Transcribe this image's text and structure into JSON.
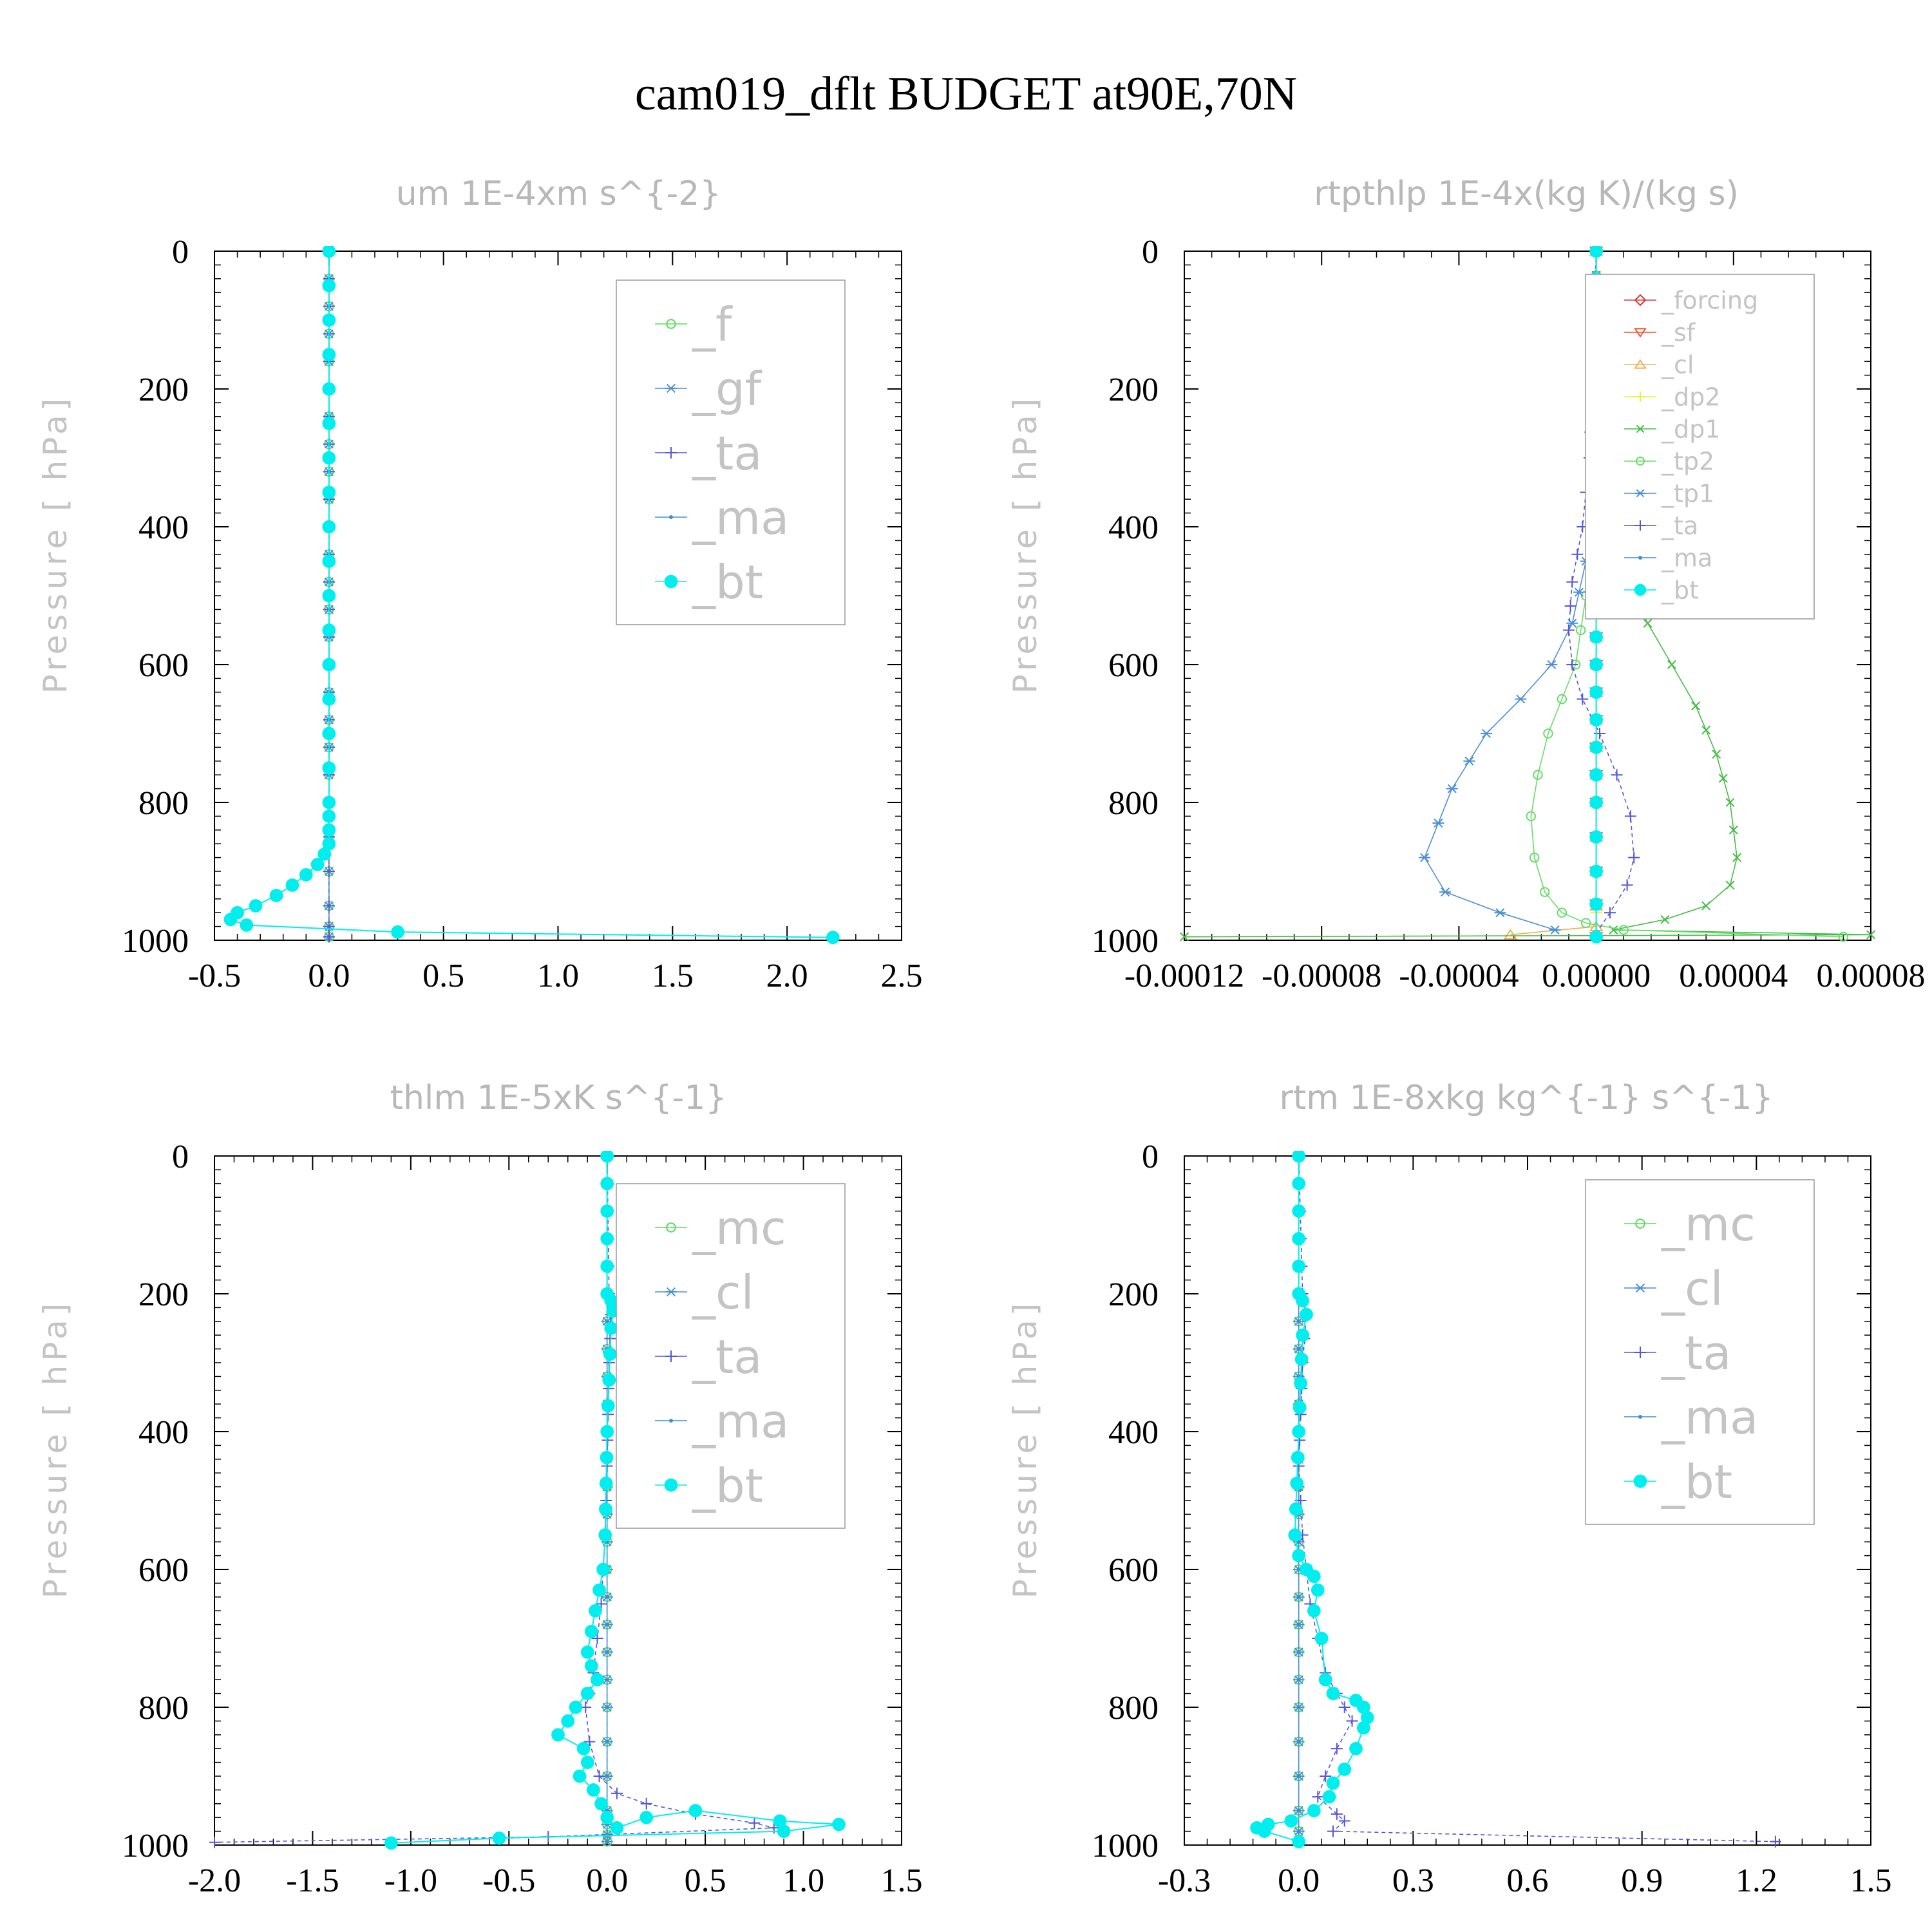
{
  "title": "cam019_dflt  BUDGET at90E,70N",
  "chart_data": [
    {
      "type": "line",
      "title": "um   1E-4xm s^{-2}",
      "ylabel": "Pressure [ hPa]",
      "xlim": [
        -0.5,
        2.5
      ],
      "ylim": [
        1000,
        0
      ],
      "xticks": [
        "-0.5",
        "0.0",
        "0.5",
        "1.0",
        "1.5",
        "2.0",
        "2.5"
      ],
      "yticks": [
        "0",
        "200",
        "400",
        "600",
        "800",
        "1000"
      ],
      "legend_position": "top-right",
      "series": [
        {
          "name": "_f",
          "color": "#55dd55",
          "marker": "circle-open",
          "x": [
            0,
            0,
            0,
            0,
            0,
            0,
            0,
            0,
            0
          ],
          "y": [
            0,
            200,
            400,
            600,
            800,
            900,
            950,
            980,
            995
          ]
        },
        {
          "name": "_gf",
          "color": "#4a8fd8",
          "marker": "star",
          "x": [
            0,
            0,
            0,
            0,
            0,
            0,
            0,
            0,
            0
          ],
          "y": [
            0,
            200,
            400,
            600,
            800,
            900,
            950,
            980,
            995
          ]
        },
        {
          "name": "_ta",
          "color": "#5555dd",
          "marker": "plus",
          "x": [
            0,
            0,
            0,
            0,
            0,
            0,
            0,
            0,
            0
          ],
          "y": [
            0,
            200,
            400,
            600,
            800,
            900,
            950,
            980,
            995
          ]
        },
        {
          "name": "_ma",
          "color": "#3f8fcf",
          "marker": "dot",
          "x": [
            0,
            0,
            0,
            0,
            0,
            0,
            0,
            0,
            0,
            0,
            0,
            0,
            -0.02,
            -0.05,
            -0.1,
            -0.16,
            -0.23,
            -0.32,
            -0.4,
            -0.43,
            -0.36,
            0.3,
            2.2
          ],
          "y": [
            0,
            100,
            200,
            300,
            400,
            500,
            600,
            700,
            800,
            820,
            840,
            860,
            875,
            890,
            905,
            920,
            935,
            950,
            960,
            970,
            978,
            988,
            996
          ]
        },
        {
          "name": "_bt",
          "color": "#00eeee",
          "marker": "filled",
          "x": [
            0,
            0,
            0,
            0,
            0,
            0,
            0,
            0,
            0,
            0,
            0,
            0,
            -0.02,
            -0.05,
            -0.1,
            -0.16,
            -0.23,
            -0.32,
            -0.4,
            -0.43,
            -0.36,
            0.3,
            2.2
          ],
          "y": [
            0,
            100,
            200,
            300,
            400,
            500,
            600,
            700,
            800,
            820,
            840,
            860,
            875,
            890,
            905,
            920,
            935,
            950,
            960,
            970,
            978,
            988,
            996
          ]
        }
      ]
    },
    {
      "type": "line",
      "title": "rtpthlp   1E-4x(kg K)/(kg s)",
      "ylabel": "Pressure [ hPa]",
      "xlim": [
        -0.00012,
        8e-05
      ],
      "ylim": [
        1000,
        0
      ],
      "xticks": [
        "-0.00012",
        "-0.00008",
        "-0.00004",
        "0.00000",
        "0.00004",
        "0.00008"
      ],
      "yticks": [
        "0",
        "200",
        "400",
        "600",
        "800",
        "1000"
      ],
      "legend_position": "top-right",
      "series": [
        {
          "name": "_forcing",
          "color": "#dd3333",
          "marker": "diamond",
          "x": [
            0,
            0,
            0,
            0,
            0,
            0,
            0
          ],
          "y": [
            0,
            200,
            400,
            600,
            800,
            900,
            995
          ]
        },
        {
          "name": "_sf",
          "color": "#ee5533",
          "marker": "tri-down",
          "x": [
            0,
            0,
            0,
            0,
            0,
            0,
            0
          ],
          "y": [
            0,
            200,
            400,
            600,
            800,
            900,
            995
          ]
        },
        {
          "name": "_cl",
          "color": "#f0b050",
          "marker": "tri-up",
          "x": [
            0,
            0,
            0,
            0,
            0,
            0,
            0,
            0,
            -2.5e-05
          ],
          "y": [
            0,
            200,
            400,
            600,
            800,
            900,
            950,
            980,
            992
          ]
        },
        {
          "name": "_dp2",
          "color": "#eeee33",
          "marker": "plus",
          "x": [
            0,
            0,
            0,
            0,
            0,
            0,
            0,
            0
          ],
          "y": [
            0,
            200,
            400,
            600,
            800,
            900,
            960,
            990
          ]
        },
        {
          "name": "_dp1",
          "color": "#44bb44",
          "marker": "x",
          "x": [
            0,
            0,
            1e-06,
            4e-06,
            9e-06,
            1.5e-05,
            2.2e-05,
            2.9e-05,
            3.5e-05,
            3.9e-05,
            4.1e-05,
            3.9e-05,
            3.2e-05,
            2e-05,
            5e-06,
            8e-05,
            -0.00012
          ],
          "y": [
            0,
            280,
            350,
            420,
            480,
            540,
            600,
            660,
            730,
            800,
            880,
            920,
            950,
            970,
            985,
            992,
            995
          ]
        },
        {
          "name": "_tp2",
          "color": "#66dd66",
          "marker": "circle-open",
          "x": [
            0,
            0,
            -1e-06,
            -3e-06,
            -6e-06,
            -1e-05,
            -1.4e-05,
            -1.7e-05,
            -1.9e-05,
            -1.8e-05,
            -1.5e-05,
            -1e-05,
            -3e-06,
            8e-06,
            7.2e-05
          ],
          "y": [
            0,
            280,
            400,
            500,
            600,
            650,
            700,
            760,
            820,
            880,
            930,
            960,
            975,
            985,
            995
          ]
        },
        {
          "name": "_tp1",
          "color": "#4a8fd8",
          "marker": "star",
          "x": [
            0,
            0,
            -3e-06,
            -7e-06,
            -1.3e-05,
            -2.2e-05,
            -3.2e-05,
            -4.2e-05,
            -5e-05,
            -4.4e-05,
            -2.8e-05,
            -1.2e-05
          ],
          "y": [
            0,
            350,
            450,
            540,
            600,
            650,
            700,
            780,
            880,
            930,
            960,
            985
          ]
        },
        {
          "name": "_ta",
          "color": "#5555dd",
          "marker": "plus",
          "x": [
            0,
            -2e-06,
            -4e-06,
            -7e-06,
            -8e-06,
            -7e-06,
            -4e-06,
            1e-06,
            6e-06,
            1e-05,
            1.1e-05,
            9e-06,
            4e-06,
            0
          ],
          "y": [
            0,
            300,
            400,
            480,
            550,
            600,
            650,
            700,
            760,
            820,
            880,
            920,
            960,
            990
          ]
        },
        {
          "name": "_ma",
          "color": "#3f8fcf",
          "marker": "dot",
          "x": [
            0,
            0,
            0,
            0,
            0,
            0,
            0
          ],
          "y": [
            0,
            200,
            400,
            600,
            800,
            900,
            995
          ]
        },
        {
          "name": "_bt",
          "color": "#00eeee",
          "marker": "filled",
          "x": [
            0,
            0,
            0,
            0,
            0,
            0,
            0
          ],
          "y": [
            0,
            200,
            400,
            600,
            800,
            900,
            995
          ]
        }
      ]
    },
    {
      "type": "line",
      "title": "thlm   1E-5xK s^{-1}",
      "ylabel": "Pressure [ hPa]",
      "xlim": [
        -2.0,
        1.5
      ],
      "ylim": [
        1000,
        0
      ],
      "xticks": [
        "-2.0",
        "-1.5",
        "-1.0",
        "-0.5",
        "0.0",
        "0.5",
        "1.0",
        "1.5"
      ],
      "yticks": [
        "0",
        "200",
        "400",
        "600",
        "800",
        "1000"
      ],
      "legend_position": "top-right",
      "series": [
        {
          "name": "_mc",
          "color": "#55dd55",
          "marker": "circle-open",
          "x": [
            0,
            0,
            0,
            0,
            0,
            0,
            0,
            0,
            0,
            0
          ],
          "y": [
            0,
            200,
            400,
            600,
            800,
            900,
            950,
            970,
            985,
            995
          ]
        },
        {
          "name": "_cl",
          "color": "#4a8fd8",
          "marker": "star",
          "x": [
            0,
            0,
            0,
            0,
            0,
            0,
            0,
            0,
            0,
            0
          ],
          "y": [
            0,
            200,
            400,
            600,
            800,
            900,
            950,
            970,
            985,
            995
          ]
        },
        {
          "name": "_ta",
          "color": "#5555dd",
          "marker": "plus",
          "x": [
            0,
            0.01,
            0.02,
            0.01,
            0,
            -0.01,
            -0.02,
            -0.03,
            -0.05,
            -0.07,
            -0.09,
            -0.11,
            -0.09,
            -0.04,
            0.05,
            0.2,
            0.45,
            0.75,
            0.85,
            -0.3,
            -2.0
          ],
          "y": [
            0,
            200,
            230,
            300,
            450,
            550,
            600,
            650,
            700,
            750,
            780,
            800,
            850,
            900,
            925,
            940,
            955,
            968,
            975,
            988,
            996
          ]
        },
        {
          "name": "_ma",
          "color": "#3f8fcf",
          "marker": "dot",
          "x": [
            0,
            0,
            0,
            0,
            0,
            0,
            0,
            0,
            0,
            0
          ],
          "y": [
            0,
            200,
            400,
            600,
            800,
            900,
            950,
            970,
            985,
            995
          ]
        },
        {
          "name": "_bt",
          "color": "#00eeee",
          "marker": "filled",
          "x": [
            0,
            0,
            0.02,
            0.03,
            0.02,
            0,
            -0.01,
            -0.02,
            -0.04,
            -0.06,
            -0.08,
            -0.1,
            -0.08,
            -0.05,
            -0.1,
            -0.16,
            -0.2,
            -0.25,
            -0.12,
            -0.1,
            -0.14,
            -0.07,
            -0.03,
            0,
            0.05,
            0.2,
            0.45,
            0.88,
            1.18,
            0.9,
            -0.55,
            -1.1
          ],
          "y": [
            0,
            200,
            210,
            225,
            250,
            400,
            550,
            600,
            630,
            660,
            690,
            720,
            740,
            760,
            780,
            800,
            820,
            840,
            860,
            880,
            900,
            920,
            940,
            960,
            975,
            960,
            950,
            965,
            970,
            980,
            990,
            997
          ]
        }
      ]
    },
    {
      "type": "line",
      "title": "rtm   1E-8xkg kg^{-1} s^{-1}",
      "ylabel": "Pressure [ hPa]",
      "xlim": [
        -0.3,
        1.5
      ],
      "ylim": [
        1000,
        0
      ],
      "xticks": [
        "-0.3",
        "0.0",
        "0.3",
        "0.6",
        "0.9",
        "1.2",
        "1.5"
      ],
      "yticks": [
        "0",
        "200",
        "400",
        "600",
        "800",
        "1000"
      ],
      "legend_position": "top-right",
      "series": [
        {
          "name": "_mc",
          "color": "#55dd55",
          "marker": "circle-open",
          "x": [
            0,
            0,
            0,
            0,
            0,
            0,
            0,
            0,
            0
          ],
          "y": [
            0,
            200,
            400,
            600,
            800,
            900,
            950,
            980,
            995
          ]
        },
        {
          "name": "_cl",
          "color": "#4a8fd8",
          "marker": "star",
          "x": [
            0,
            0,
            0,
            0,
            0,
            0,
            0,
            0,
            0
          ],
          "y": [
            0,
            200,
            400,
            600,
            800,
            900,
            950,
            980,
            995
          ]
        },
        {
          "name": "_ta",
          "color": "#5555dd",
          "marker": "plus",
          "x": [
            0,
            0.01,
            0.02,
            0.01,
            0,
            0.01,
            0.02,
            0.03,
            0.05,
            0.07,
            0.1,
            0.12,
            0.14,
            0.1,
            0.07,
            0.05,
            0.1,
            0.12,
            0.09,
            1.25
          ],
          "y": [
            0,
            200,
            230,
            300,
            450,
            550,
            600,
            650,
            700,
            750,
            780,
            800,
            820,
            860,
            900,
            930,
            955,
            965,
            980,
            995
          ]
        },
        {
          "name": "_ma",
          "color": "#3f8fcf",
          "marker": "dot",
          "x": [
            0,
            0,
            0,
            0,
            0,
            0,
            0,
            0,
            0
          ],
          "y": [
            0,
            200,
            400,
            600,
            800,
            900,
            950,
            980,
            995
          ]
        },
        {
          "name": "_bt",
          "color": "#00eeee",
          "marker": "filled",
          "x": [
            0,
            0,
            0.01,
            0.02,
            0.01,
            0,
            -0.01,
            0,
            0.02,
            0.04,
            0.05,
            0.04,
            0.06,
            0.07,
            0.09,
            0.15,
            0.17,
            0.18,
            0.17,
            0.15,
            0.12,
            0.09,
            0.08,
            0.04,
            -0.02,
            -0.08,
            -0.11,
            -0.09,
            0
          ],
          "y": [
            0,
            200,
            210,
            230,
            260,
            400,
            550,
            580,
            600,
            610,
            630,
            660,
            700,
            760,
            780,
            790,
            800,
            815,
            830,
            860,
            890,
            910,
            930,
            950,
            965,
            970,
            975,
            980,
            995
          ]
        }
      ]
    }
  ]
}
